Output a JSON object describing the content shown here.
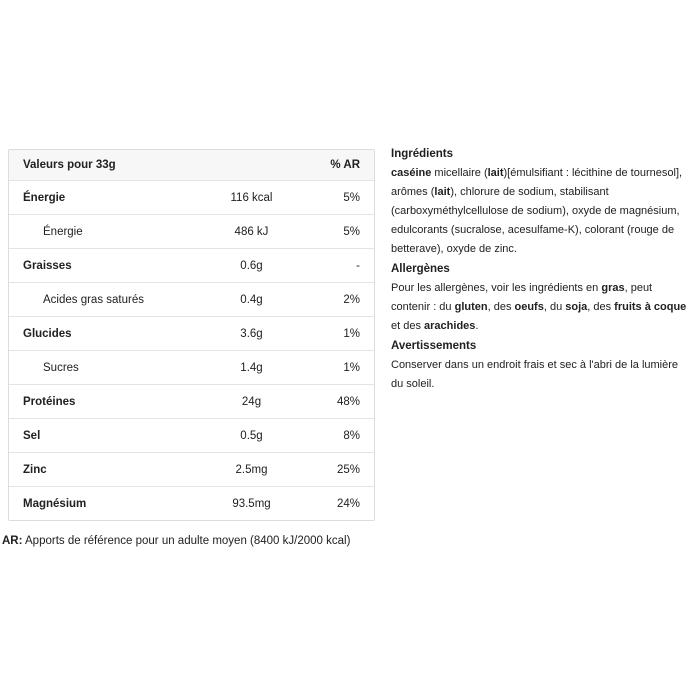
{
  "colors": {
    "background": "#ffffff",
    "text": "#212121",
    "table_border": "#dcdcdc",
    "row_separator": "#e4e4e4",
    "header_background": "#f7f7f7"
  },
  "nutrition_table": {
    "header": {
      "label": "Valeurs pour 33g",
      "ar_label": "% AR"
    },
    "rows": [
      {
        "label": "Énergie",
        "value": "116 kcal",
        "ar": "5%",
        "bold": true,
        "indent": false
      },
      {
        "label": "Énergie",
        "value": "486 kJ",
        "ar": "5%",
        "bold": false,
        "indent": true
      },
      {
        "label": "Graisses",
        "value": "0.6g",
        "ar": "-",
        "bold": true,
        "indent": false
      },
      {
        "label": "Acides gras saturés",
        "value": "0.4g",
        "ar": "2%",
        "bold": false,
        "indent": true
      },
      {
        "label": "Glucides",
        "value": "3.6g",
        "ar": "1%",
        "bold": true,
        "indent": false
      },
      {
        "label": "Sucres",
        "value": "1.4g",
        "ar": "1%",
        "bold": false,
        "indent": true
      },
      {
        "label": "Protéines",
        "value": "24g",
        "ar": "48%",
        "bold": true,
        "indent": false
      },
      {
        "label": "Sel",
        "value": "0.5g",
        "ar": "8%",
        "bold": true,
        "indent": false
      },
      {
        "label": "Zinc",
        "value": "2.5mg",
        "ar": "25%",
        "bold": true,
        "indent": false
      },
      {
        "label": "Magnésium",
        "value": "93.5mg",
        "ar": "24%",
        "bold": true,
        "indent": false
      }
    ],
    "footnote_prefix": "AR:",
    "footnote_text": " Apports de référence pour un adulte moyen (8400 kJ/2000 kcal)"
  },
  "info_panel": {
    "sections": [
      {
        "id": "ingredients",
        "heading": "Ingrédients",
        "lines": [
          [
            {
              "t": "caséine",
              "b": true
            },
            {
              "t": " micellaire (",
              "b": false
            },
            {
              "t": "lait",
              "b": true
            },
            {
              "t": ")[émulsifiant : lécithine de tournesol],",
              "b": false
            }
          ],
          [
            {
              "t": "arômes (",
              "b": false
            },
            {
              "t": "lait",
              "b": true
            },
            {
              "t": "), chlorure de sodium, stabilisant",
              "b": false
            }
          ],
          [
            {
              "t": "(carboxyméthylcellulose de sodium), oxyde de magnésium,",
              "b": false
            }
          ],
          [
            {
              "t": "edulcorants (sucralose, acesulfame-K), colorant (rouge de",
              "b": false
            }
          ],
          [
            {
              "t": "betterave), oxyde de zinc.",
              "b": false
            }
          ]
        ]
      },
      {
        "id": "allergens",
        "heading": "Allergènes",
        "lines": [
          [
            {
              "t": "Pour les allergènes, voir les ingrédients en ",
              "b": false
            },
            {
              "t": "gras",
              "b": true
            },
            {
              "t": ", peut",
              "b": false
            }
          ],
          [
            {
              "t": "contenir : du ",
              "b": false
            },
            {
              "t": "gluten",
              "b": true
            },
            {
              "t": ", des ",
              "b": false
            },
            {
              "t": "oeufs",
              "b": true
            },
            {
              "t": ", du ",
              "b": false
            },
            {
              "t": "soja",
              "b": true
            },
            {
              "t": ", des ",
              "b": false
            },
            {
              "t": "fruits à coque",
              "b": true
            }
          ],
          [
            {
              "t": "et des ",
              "b": false
            },
            {
              "t": "arachides",
              "b": true
            },
            {
              "t": ".",
              "b": false
            }
          ]
        ]
      },
      {
        "id": "warnings",
        "heading": "Avertissements",
        "lines": [
          [
            {
              "t": "Conserver dans un endroit frais et sec à l'abri de la lumière",
              "b": false
            }
          ],
          [
            {
              "t": "du soleil.",
              "b": false
            }
          ]
        ]
      }
    ]
  }
}
